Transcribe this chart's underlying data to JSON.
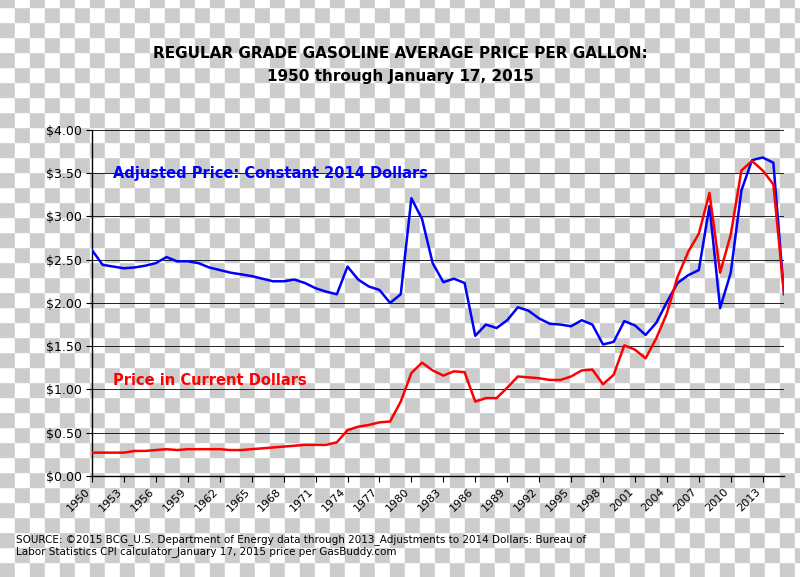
{
  "title_line1": "REGULAR GRADE GASOLINE AVERAGE PRICE PER GALLON:",
  "title_line2": "1950 through January 17, 2015",
  "source_text": "SOURCE: ©2015 BCG_U.S. Department of Energy data through 2013_Adjustments to 2014 Dollars: Bureau of\nLabor Statistics CPI calculator_January 17, 2015 price per GasBuddy.com",
  "label_adjusted": "Adjusted Price: Constant 2014 Dollars",
  "label_current": "Price in Current Dollars",
  "adjusted_color": "#0000FF",
  "current_color": "#FF0000",
  "checker_light": "#FFFFFF",
  "checker_dark": "#CCCCCC",
  "ylim": [
    0.0,
    4.0
  ],
  "yticks": [
    0.0,
    0.5,
    1.0,
    1.5,
    2.0,
    2.5,
    3.0,
    3.5,
    4.0
  ],
  "years": [
    1950,
    1951,
    1952,
    1953,
    1954,
    1955,
    1956,
    1957,
    1958,
    1959,
    1960,
    1961,
    1962,
    1963,
    1964,
    1965,
    1966,
    1967,
    1968,
    1969,
    1970,
    1971,
    1972,
    1973,
    1974,
    1975,
    1976,
    1977,
    1978,
    1979,
    1980,
    1981,
    1982,
    1983,
    1984,
    1985,
    1986,
    1987,
    1988,
    1989,
    1990,
    1991,
    1992,
    1993,
    1994,
    1995,
    1996,
    1997,
    1998,
    1999,
    2000,
    2001,
    2002,
    2003,
    2004,
    2005,
    2006,
    2007,
    2008,
    2009,
    2010,
    2011,
    2012,
    2013,
    2014,
    2015
  ],
  "adjusted_price": [
    2.61,
    2.44,
    2.42,
    2.4,
    2.41,
    2.43,
    2.46,
    2.53,
    2.48,
    2.48,
    2.46,
    2.41,
    2.38,
    2.35,
    2.33,
    2.31,
    2.28,
    2.25,
    2.25,
    2.27,
    2.23,
    2.17,
    2.13,
    2.1,
    2.42,
    2.27,
    2.19,
    2.15,
    2.0,
    2.1,
    3.21,
    2.97,
    2.46,
    2.24,
    2.28,
    2.23,
    1.62,
    1.75,
    1.71,
    1.8,
    1.95,
    1.91,
    1.82,
    1.76,
    1.75,
    1.73,
    1.8,
    1.75,
    1.52,
    1.55,
    1.79,
    1.74,
    1.63,
    1.77,
    2.01,
    2.23,
    2.32,
    2.38,
    3.12,
    1.94,
    2.35,
    3.3,
    3.65,
    3.68,
    3.62,
    2.1
  ],
  "current_price": [
    0.27,
    0.27,
    0.27,
    0.27,
    0.29,
    0.29,
    0.3,
    0.31,
    0.3,
    0.31,
    0.31,
    0.31,
    0.31,
    0.3,
    0.3,
    0.31,
    0.32,
    0.33,
    0.34,
    0.35,
    0.36,
    0.36,
    0.36,
    0.39,
    0.53,
    0.57,
    0.59,
    0.62,
    0.63,
    0.86,
    1.19,
    1.31,
    1.22,
    1.16,
    1.21,
    1.2,
    0.86,
    0.9,
    0.9,
    1.02,
    1.15,
    1.14,
    1.13,
    1.11,
    1.11,
    1.15,
    1.22,
    1.23,
    1.06,
    1.17,
    1.51,
    1.46,
    1.36,
    1.59,
    1.88,
    2.3,
    2.59,
    2.8,
    3.27,
    2.35,
    2.79,
    3.53,
    3.64,
    3.53,
    3.37,
    2.11
  ],
  "xtick_years": [
    1950,
    1953,
    1956,
    1959,
    1962,
    1965,
    1968,
    1971,
    1974,
    1977,
    1980,
    1983,
    1986,
    1989,
    1992,
    1995,
    1998,
    2001,
    2004,
    2007,
    2010,
    2013
  ]
}
